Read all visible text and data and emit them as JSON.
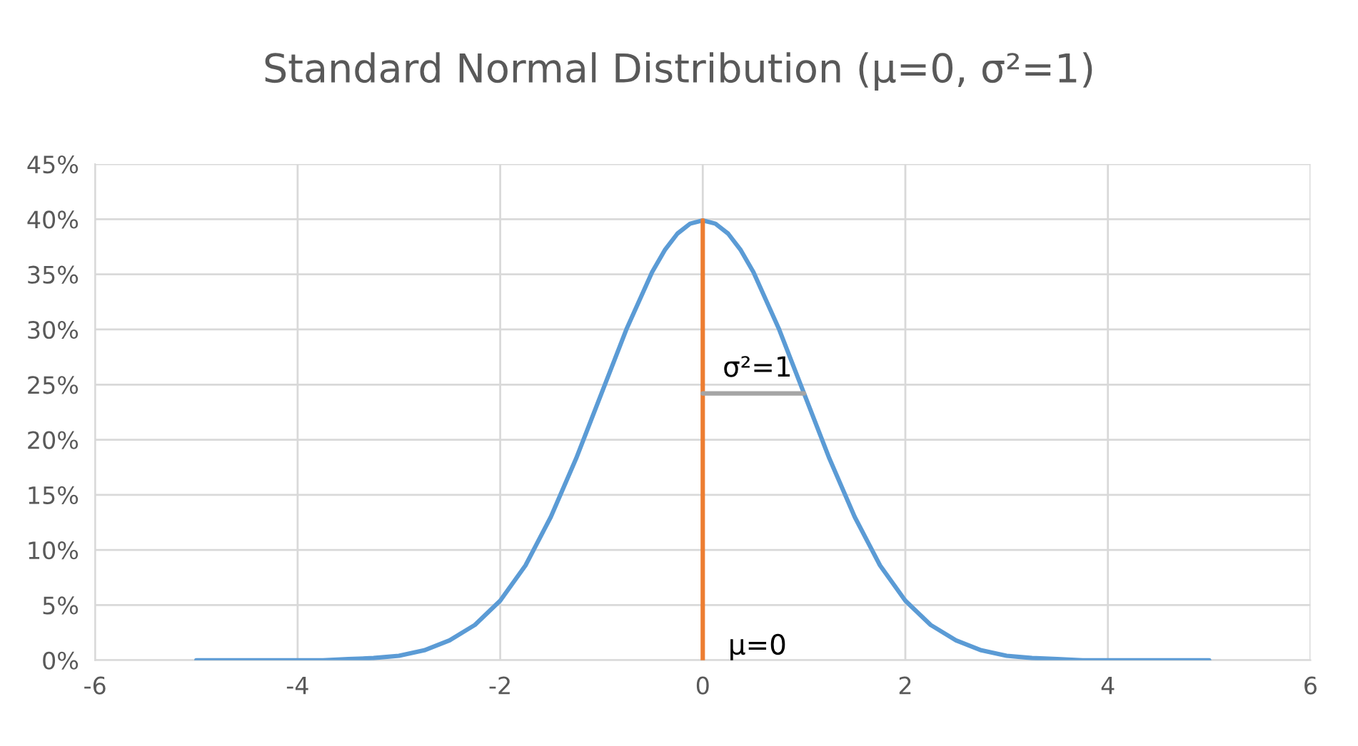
{
  "chart_data": {
    "type": "line",
    "title": "Standard Normal Distribution (μ=0, σ²=1)",
    "series": [
      {
        "color": "#5b9bd5",
        "x": [
          -5,
          -4.5,
          -4,
          -3.75,
          -3.5,
          -3.25,
          -3,
          -2.75,
          -2.5,
          -2.25,
          -2,
          -1.75,
          -1.5,
          -1.25,
          -1,
          -0.75,
          -0.5,
          -0.375,
          -0.25,
          -0.125,
          0,
          0.125,
          0.25,
          0.375,
          0.5,
          0.75,
          1,
          1.25,
          1.5,
          1.75,
          2,
          2.25,
          2.5,
          2.75,
          3,
          3.25,
          3.5,
          3.75,
          4,
          4.5,
          5
        ],
        "values": [
          0,
          0,
          0,
          0,
          0.1,
          0.2,
          0.4,
          0.9,
          1.8,
          3.2,
          5.4,
          8.6,
          13.0,
          18.3,
          24.2,
          30.1,
          35.2,
          37.2,
          38.7,
          39.6,
          39.9,
          39.6,
          38.7,
          37.2,
          35.2,
          30.1,
          24.2,
          18.3,
          13.0,
          8.6,
          5.4,
          3.2,
          1.8,
          0.9,
          0.4,
          0.2,
          0.1,
          0,
          0,
          0,
          0
        ]
      },
      {
        "color": "#ed7d31",
        "x": [
          0,
          0
        ],
        "values": [
          0,
          39.9
        ]
      },
      {
        "color": "#a5a5a5",
        "x": [
          0,
          1
        ],
        "values": [
          24.2,
          24.2
        ]
      }
    ],
    "annotations": [
      "σ²=1",
      "μ=0"
    ],
    "xlim": [
      -6,
      6
    ],
    "xticks": [
      -6,
      -4,
      -2,
      0,
      2,
      4,
      6
    ],
    "ylim": [
      0,
      45
    ],
    "yticks": [
      {
        "value": 0,
        "label": "0%"
      },
      {
        "value": 5,
        "label": "5%"
      },
      {
        "value": 10,
        "label": "10%"
      },
      {
        "value": 15,
        "label": "15%"
      },
      {
        "value": 20,
        "label": "20%"
      },
      {
        "value": 25,
        "label": "25%"
      },
      {
        "value": 30,
        "label": "30%"
      },
      {
        "value": 35,
        "label": "35%"
      },
      {
        "value": 40,
        "label": "40%"
      },
      {
        "value": 45,
        "label": "45%"
      }
    ],
    "grid": true
  }
}
